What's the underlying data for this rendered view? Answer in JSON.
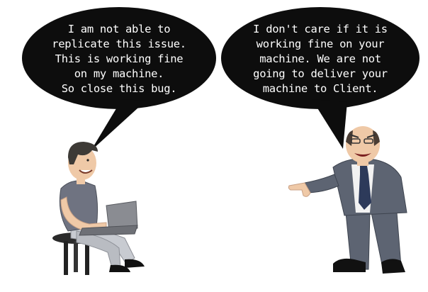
{
  "developer_speech": {
    "lines": [
      "I am not able to",
      "replicate this issue.",
      "This is working fine",
      "on my machine.",
      "So close this bug."
    ]
  },
  "manager_speech": {
    "lines": [
      "I don't care if it is",
      "working fine on your",
      "machine. We are not",
      "going to deliver your",
      "machine to Client."
    ]
  },
  "icons": [
    "speech-bubble",
    "developer-with-laptop",
    "manager-pointing"
  ],
  "colors": {
    "background": "#ffffff",
    "bubble": "#0d0d0d",
    "bubble_text": "#ffffff",
    "suit": "#5d6472",
    "shirt": "#6f7381",
    "skin": "#efc9a7",
    "laptop": "#8a8c92"
  }
}
